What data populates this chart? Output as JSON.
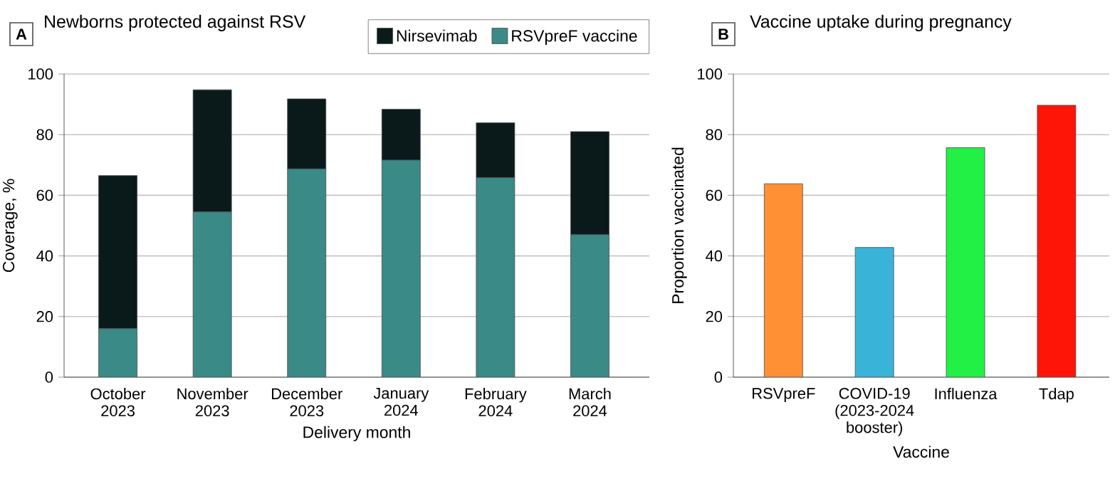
{
  "chart_data": [
    {
      "type": "bar",
      "stacked": true,
      "title": "Newborns protected against RSV",
      "annotations": [
        "A"
      ],
      "xlabel": "Delivery month",
      "ylabel": "Coverage, %",
      "categories": [
        "October 2023",
        "November 2023",
        "December 2023",
        "January 2024",
        "February 2024",
        "March 2024"
      ],
      "series": [
        {
          "name": "RSVpreF vaccine",
          "color": "#3a8a87",
          "values": [
            16,
            54.5,
            68.7,
            71.6,
            65.8,
            47.0
          ]
        },
        {
          "name": "Nirsevimab",
          "color": "#0a1a1a",
          "values": [
            50.5,
            40.3,
            23.1,
            16.8,
            18.1,
            34.0
          ]
        }
      ],
      "ylim": [
        0,
        100
      ],
      "yticks": [
        0,
        20,
        40,
        60,
        80,
        100
      ],
      "grid": "y",
      "legend": "top right"
    },
    {
      "type": "bar",
      "title": "Vaccine uptake during pregnancy",
      "annotations": [
        "B"
      ],
      "xlabel": "Vaccine",
      "ylabel": "Proportion vaccinated",
      "categories": [
        "RSVpreF",
        "COVID-19 (2023-2024 booster)",
        "Influenza",
        "Tdap"
      ],
      "values": [
        63.8,
        42.8,
        75.7,
        89.7
      ],
      "colors": [
        "#ff9033",
        "#3ab3d9",
        "#22f044",
        "#ff1408"
      ],
      "ylim": [
        0,
        100
      ],
      "yticks": [
        0,
        20,
        40,
        60,
        80,
        100
      ],
      "grid": "y"
    }
  ]
}
